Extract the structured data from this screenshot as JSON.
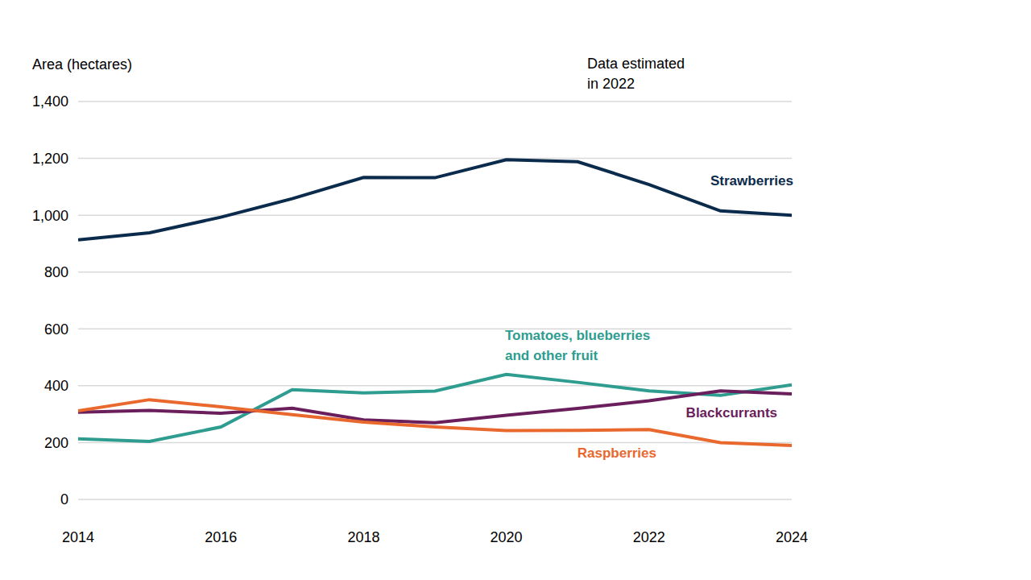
{
  "chart_data": {
    "type": "line",
    "ylabel": "Area (hectares)",
    "annotation": "Data estimated in 2022",
    "x": [
      2014,
      2015,
      2016,
      2017,
      2018,
      2019,
      2020,
      2021,
      2022,
      2023,
      2024
    ],
    "xlim": [
      2014,
      2024
    ],
    "xticks": [
      2014,
      2016,
      2018,
      2020,
      2022,
      2024
    ],
    "ylim": [
      0,
      1400
    ],
    "yticks": [
      0,
      200,
      400,
      600,
      800,
      {
        "value": 1000,
        "label": "1,000"
      },
      {
        "value": 1200,
        "label": "1,200"
      },
      {
        "value": 1400,
        "label": "1,400"
      }
    ],
    "grid": true,
    "series": [
      {
        "name": "Strawberries",
        "color": "#0b2b4c",
        "values": [
          913,
          938,
          993,
          1058,
          1133,
          1132,
          1195,
          1188,
          1108,
          1015,
          1000
        ]
      },
      {
        "name": "Tomatoes, blueberries and other fruit",
        "color": "#2e9c8f",
        "values": [
          213,
          204,
          255,
          386,
          375,
          381,
          440,
          412,
          382,
          366,
          403
        ]
      },
      {
        "name": "Blackcurrants",
        "color": "#6b1e5c",
        "values": [
          307,
          313,
          303,
          321,
          280,
          270,
          296,
          320,
          347,
          382,
          371
        ]
      },
      {
        "name": "Raspberries",
        "color": "#e8682d",
        "values": [
          312,
          351,
          326,
          298,
          272,
          255,
          242,
          243,
          246,
          200,
          190
        ]
      }
    ]
  }
}
